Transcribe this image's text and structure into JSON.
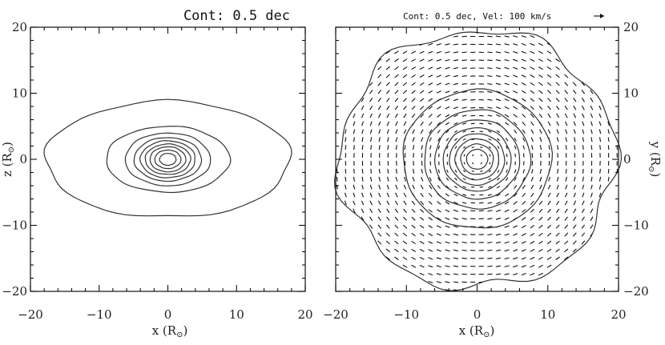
{
  "chart_data": [
    {
      "type": "contour",
      "title": "Cont: 0.5 dec",
      "xlabel": "x (R",
      "xlabel_sub": "⊙",
      "xlabel_close": ")",
      "ylabel": "z (R",
      "ylabel_sub": "⊙",
      "ylabel_close": ")",
      "xlim": [
        -20,
        20
      ],
      "ylim": [
        -20,
        20
      ],
      "xticks": [
        "−20",
        "−10",
        "0",
        "10",
        "20"
      ],
      "yticks": [
        "−20",
        "−10",
        "0",
        "10",
        "20"
      ],
      "contour_interval_dex": 0.5,
      "contours": [
        {
          "rx": 17.8,
          "ry": 8.8
        },
        {
          "rx": 9.0,
          "ry": 5.0
        },
        {
          "rx": 6.2,
          "ry": 4.0
        },
        {
          "rx": 4.9,
          "ry": 3.3
        },
        {
          "rx": 4.0,
          "ry": 2.8
        },
        {
          "rx": 3.3,
          "ry": 2.3
        },
        {
          "rx": 2.6,
          "ry": 1.9
        },
        {
          "rx": 1.9,
          "ry": 1.4
        },
        {
          "rx": 1.2,
          "ry": 0.9
        }
      ]
    },
    {
      "type": "contour+vector",
      "title": "Cont: 0.5 dec, Vel: 100 km/s",
      "xlabel": "x (R",
      "xlabel_sub": "⊙",
      "xlabel_close": ")",
      "ylabel": "y (R",
      "ylabel_sub": "⊙",
      "ylabel_close": ")",
      "xlim": [
        -20,
        20
      ],
      "ylim": [
        -20,
        20
      ],
      "xticks": [
        "−20",
        "−10",
        "0",
        "10",
        "20"
      ],
      "yticks": [
        "−20",
        "−10",
        "0",
        "10",
        "20"
      ],
      "contour_interval_dex": 0.5,
      "velocity_reference_kms": 100,
      "outer_boundary_radius": 19.5,
      "contours": [
        {
          "rx": 10.5,
          "ry": 10.5
        },
        {
          "rx": 7.5,
          "ry": 7.5
        },
        {
          "rx": 6.0,
          "ry": 6.0
        },
        {
          "rx": 4.8,
          "ry": 4.8
        },
        {
          "rx": 3.9,
          "ry": 3.9
        },
        {
          "rx": 3.1,
          "ry": 3.1
        },
        {
          "rx": 2.3,
          "ry": 2.3
        },
        {
          "rx": 1.5,
          "ry": 1.5
        }
      ],
      "velocity_field": "rotation"
    }
  ]
}
